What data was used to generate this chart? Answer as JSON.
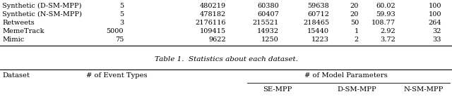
{
  "table1_rows": [
    [
      "Synthetic (D-SM-MPP)",
      "5",
      "480219",
      "60380",
      "59638",
      "20",
      "60.02",
      "100"
    ],
    [
      "Synthetic (N-SM-MPP)",
      "5",
      "478182",
      "60407",
      "60712",
      "20",
      "59.93",
      "100"
    ],
    [
      "Retweets",
      "3",
      "2176116",
      "215521",
      "218465",
      "50",
      "108.77",
      "264"
    ],
    [
      "MemeTrack",
      "5000",
      "109415",
      "14932",
      "15440",
      "1",
      "2.92",
      "32"
    ],
    [
      "Mimic",
      "75",
      "9622",
      "1250",
      "1223",
      "2",
      "3.72",
      "33"
    ]
  ],
  "caption": "Table 1.  Statistics about each dataset.",
  "header1": [
    "Dataset",
    "# of Event Types",
    "# of Model Parameters"
  ],
  "subheader": [
    "SE-MPP",
    "D-SM-MPP",
    "N-SM-MPP"
  ],
  "background": "#ffffff",
  "font_size_data": 7.0,
  "font_size_caption": 7.5,
  "font_size_header": 7.2
}
